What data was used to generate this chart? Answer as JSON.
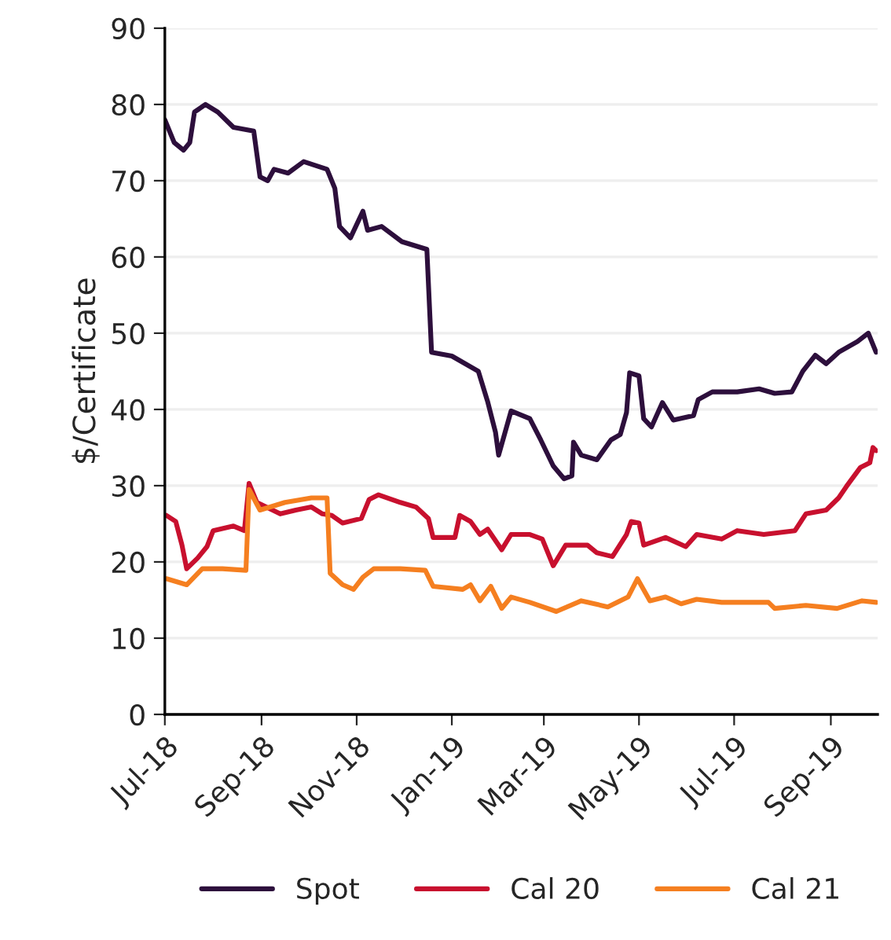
{
  "chart_data": {
    "type": "line",
    "ylabel": "$/Certificate",
    "xlim": [
      "2018-07-01",
      "2019-10-01"
    ],
    "ylim": [
      0,
      90
    ],
    "yticks": [
      0,
      10,
      20,
      30,
      40,
      50,
      60,
      70,
      80,
      90
    ],
    "xticks": [
      {
        "value": "2018-07-01",
        "label": "Jul-18"
      },
      {
        "value": "2018-09-01",
        "label": "Sep-18"
      },
      {
        "value": "2018-11-01",
        "label": "Nov-18"
      },
      {
        "value": "2019-01-01",
        "label": "Jan-19"
      },
      {
        "value": "2019-03-01",
        "label": "Mar-19"
      },
      {
        "value": "2019-05-01",
        "label": "May-19"
      },
      {
        "value": "2019-07-01",
        "label": "Jul-19"
      },
      {
        "value": "2019-09-01",
        "label": "Sep-19"
      }
    ],
    "grid": "y",
    "legend": "bottom",
    "series": [
      {
        "name": "Spot",
        "color": "#2d0f3c",
        "x": [
          "2018-07-01",
          "2018-07-07",
          "2018-07-13",
          "2018-07-17",
          "2018-07-20",
          "2018-07-27",
          "2018-08-04",
          "2018-08-14",
          "2018-08-27",
          "2018-08-31",
          "2018-09-05",
          "2018-09-09",
          "2018-09-18",
          "2018-09-28",
          "2018-10-13",
          "2018-10-18",
          "2018-10-21",
          "2018-10-28",
          "2018-11-05",
          "2018-11-08",
          "2018-11-17",
          "2018-11-30",
          "2018-12-16",
          "2018-12-19",
          "2019-01-01",
          "2019-01-18",
          "2019-01-24",
          "2019-01-29",
          "2019-01-31",
          "2019-02-08",
          "2019-02-20",
          "2019-02-27",
          "2019-03-07",
          "2019-03-14",
          "2019-03-19",
          "2019-03-20",
          "2019-03-25",
          "2019-04-04",
          "2019-04-13",
          "2019-04-19",
          "2019-04-23",
          "2019-04-25",
          "2019-05-01",
          "2019-05-04",
          "2019-05-09",
          "2019-05-16",
          "2019-05-23",
          "2019-06-05",
          "2019-06-08",
          "2019-06-17",
          "2019-07-03",
          "2019-07-17",
          "2019-07-27",
          "2019-08-07",
          "2019-08-14",
          "2019-08-22",
          "2019-08-29",
          "2019-09-06",
          "2019-09-18",
          "2019-09-25",
          "2019-09-30"
        ],
        "values": [
          78,
          75,
          74,
          75,
          79,
          80,
          79,
          77,
          76.5,
          70.5,
          70,
          71.5,
          71,
          72.5,
          71.5,
          69,
          64,
          62.5,
          66,
          63.5,
          64,
          62,
          61,
          47.5,
          47,
          45,
          41,
          37,
          34,
          39.8,
          38.8,
          36,
          32.6,
          30.9,
          31.3,
          35.7,
          34,
          33.4,
          36,
          36.7,
          39.6,
          44.8,
          44.4,
          38.8,
          37.7,
          40.9,
          38.6,
          39.2,
          41.3,
          42.3,
          42.3,
          42.7,
          42.1,
          42.3,
          45,
          47.1,
          46,
          47.5,
          48.9,
          50,
          47.5
        ]
      },
      {
        "name": "Cal 20",
        "color": "#c8102e",
        "x": [
          "2018-07-02",
          "2018-07-08",
          "2018-07-12",
          "2018-07-15",
          "2018-07-22",
          "2018-07-28",
          "2018-08-01",
          "2018-08-14",
          "2018-08-21",
          "2018-08-24",
          "2018-08-29",
          "2018-09-13",
          "2018-09-23",
          "2018-10-03",
          "2018-10-10",
          "2018-10-16",
          "2018-10-23",
          "2018-11-04",
          "2018-11-09",
          "2018-11-15",
          "2018-11-29",
          "2018-12-09",
          "2018-12-17",
          "2018-12-20",
          "2019-01-03",
          "2019-01-06",
          "2019-01-13",
          "2019-01-19",
          "2019-01-24",
          "2019-02-02",
          "2019-02-08",
          "2019-02-20",
          "2019-02-28",
          "2019-03-07",
          "2019-03-15",
          "2019-03-29",
          "2019-04-04",
          "2019-04-14",
          "2019-04-23",
          "2019-04-26",
          "2019-05-01",
          "2019-05-04",
          "2019-05-18",
          "2019-05-31",
          "2019-06-07",
          "2019-06-23",
          "2019-07-03",
          "2019-07-20",
          "2019-08-09",
          "2019-08-16",
          "2019-08-29",
          "2019-09-06",
          "2019-09-11",
          "2019-09-20",
          "2019-09-26",
          "2019-09-28",
          "2019-09-30"
        ],
        "values": [
          26.1,
          25.3,
          22.2,
          19.1,
          20.5,
          22,
          24.1,
          24.7,
          24.1,
          30.3,
          27.8,
          26.3,
          26.8,
          27.2,
          26.3,
          26.1,
          25.1,
          25.7,
          28.2,
          28.8,
          27.8,
          27.2,
          25.7,
          23.2,
          23.2,
          26.1,
          25.3,
          23.6,
          24.3,
          21.6,
          23.6,
          23.6,
          23,
          19.5,
          22.2,
          22.2,
          21.2,
          20.7,
          23.6,
          25.3,
          25.1,
          22.2,
          23.2,
          22,
          23.6,
          23,
          24.1,
          23.6,
          24.1,
          26.3,
          26.8,
          28.4,
          29.9,
          32.4,
          33,
          35,
          34.6
        ]
      },
      {
        "name": "Cal 21",
        "color": "#f57f20",
        "x": [
          "2018-07-02",
          "2018-07-15",
          "2018-07-25",
          "2018-08-07",
          "2018-08-22",
          "2018-08-24",
          "2018-08-31",
          "2018-09-16",
          "2018-10-03",
          "2018-10-13",
          "2018-10-15",
          "2018-10-23",
          "2018-10-30",
          "2018-11-05",
          "2018-11-12",
          "2018-11-29",
          "2018-12-15",
          "2018-12-20",
          "2019-01-08",
          "2019-01-13",
          "2019-01-19",
          "2019-01-26",
          "2019-02-02",
          "2019-02-08",
          "2019-02-20",
          "2019-03-09",
          "2019-03-25",
          "2019-04-11",
          "2019-04-24",
          "2019-04-30",
          "2019-05-08",
          "2019-05-18",
          "2019-05-28",
          "2019-06-07",
          "2019-06-23",
          "2019-07-23",
          "2019-07-27",
          "2019-08-16",
          "2019-09-05",
          "2019-09-21",
          "2019-09-30"
        ],
        "values": [
          17.8,
          17,
          19.1,
          19.1,
          18.9,
          29.5,
          26.8,
          27.8,
          28.4,
          28.4,
          18.5,
          17,
          16.4,
          18,
          19.1,
          19.1,
          18.9,
          16.8,
          16.4,
          17,
          14.9,
          16.8,
          13.9,
          15.4,
          14.7,
          13.5,
          14.9,
          14.1,
          15.4,
          17.8,
          14.9,
          15.4,
          14.5,
          15.1,
          14.7,
          14.7,
          13.9,
          14.3,
          13.9,
          14.9,
          14.7
        ]
      }
    ]
  }
}
